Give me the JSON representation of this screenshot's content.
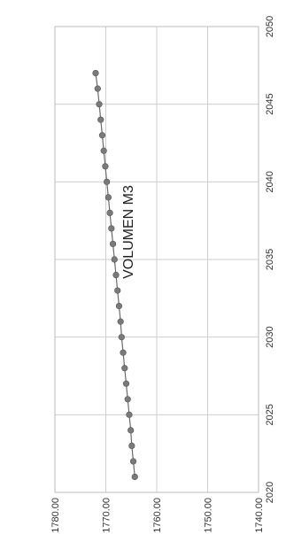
{
  "chart_data": {
    "type": "line",
    "title": "VOLUMEN M3",
    "xlabel": "",
    "ylabel": "",
    "orientation": "rotated-90-clockwise",
    "xlim": [
      2020,
      2050
    ],
    "ylim": [
      1740,
      1780
    ],
    "x_ticks": [
      "2020",
      "2025",
      "2030",
      "2035",
      "2040",
      "2045",
      "2050"
    ],
    "y_ticks": [
      "1740.00",
      "1750.00",
      "1760.00",
      "1770.00",
      "1780.00"
    ],
    "grid": true,
    "legend": "none",
    "series": [
      {
        "x": [
          2021,
          2022,
          2023,
          2024,
          2025,
          2026,
          2027,
          2028,
          2029,
          2030,
          2031,
          2032,
          2033,
          2034,
          2035,
          2036,
          2037,
          2038,
          2039,
          2040,
          2041,
          2042,
          2043,
          2044,
          2045,
          2046,
          2047
        ],
        "values": [
          1764.3,
          1764.6,
          1764.9,
          1765.1,
          1765.4,
          1765.7,
          1766.0,
          1766.3,
          1766.6,
          1766.9,
          1767.1,
          1767.4,
          1767.7,
          1768.0,
          1768.3,
          1768.6,
          1768.9,
          1769.2,
          1769.5,
          1769.8,
          1770.1,
          1770.4,
          1770.7,
          1771.0,
          1771.3,
          1771.6,
          1772.0
        ]
      }
    ]
  }
}
